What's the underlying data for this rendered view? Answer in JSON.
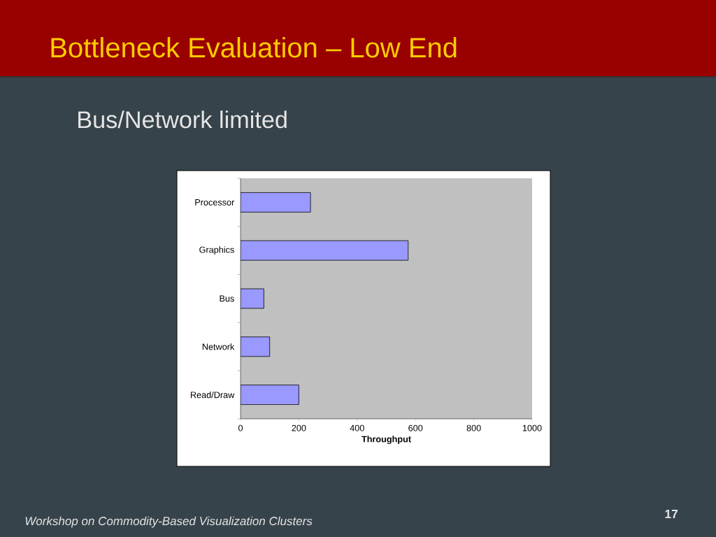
{
  "chart_data": {
    "type": "bar",
    "orientation": "horizontal",
    "title": "Bottleneck Evaluation – Low End",
    "subtitle": "Bus/Network limited",
    "xlabel": "Throughput",
    "categories": [
      "Processor",
      "Graphics",
      "Bus",
      "Network",
      "Read/Draw"
    ],
    "values": [
      240,
      575,
      80,
      100,
      200
    ],
    "color": "#9999ff",
    "xlim": [
      0,
      1000
    ],
    "xticks": [
      0,
      200,
      400,
      600,
      800,
      1000
    ],
    "annotations": [
      "Workshop on Commodity-Based Visualization Clusters",
      "17"
    ]
  }
}
